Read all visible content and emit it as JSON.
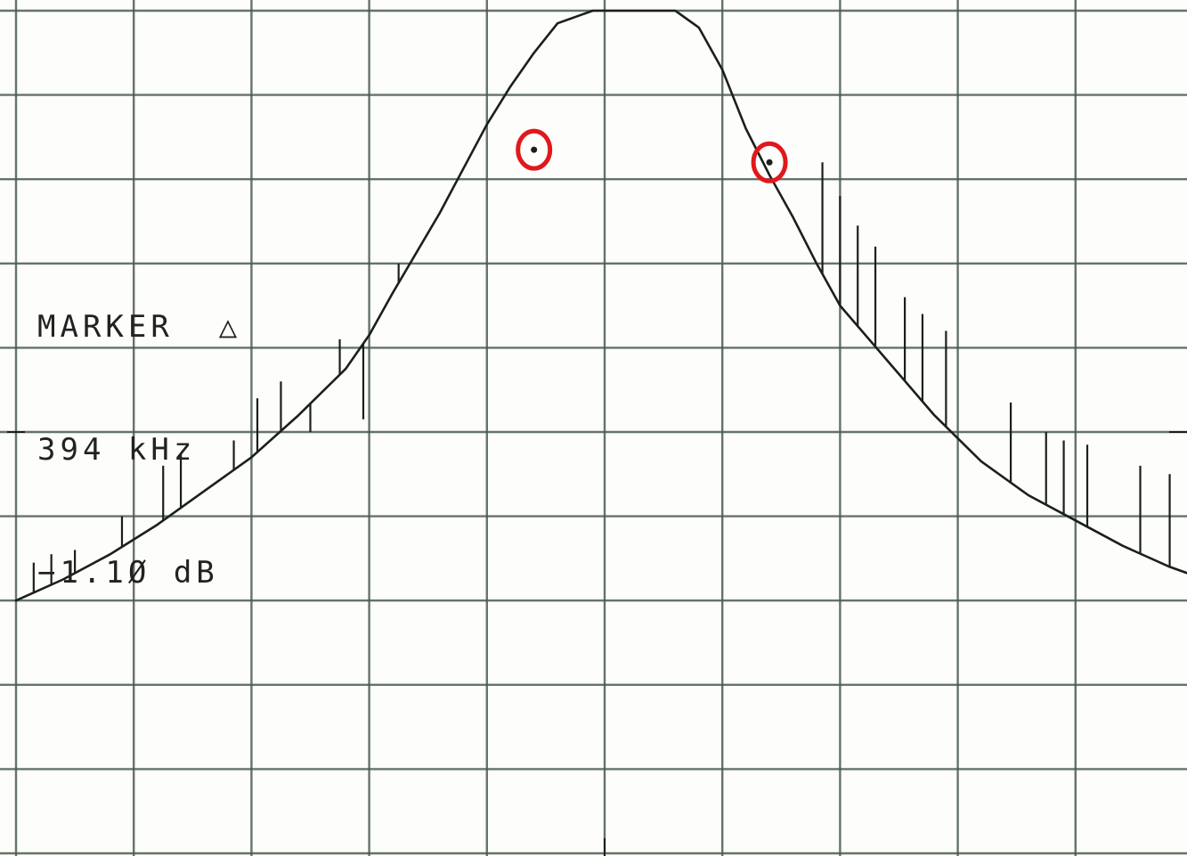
{
  "marker": {
    "label": "MARKER",
    "delta_symbol": "△",
    "frequency": "394 kHz",
    "level": "−1.1Ø dB"
  },
  "colors": {
    "grid": "#4b5b4f",
    "trace": "#1a201c",
    "marker_circle": "#e0181c",
    "paper": "#fdfdfb"
  },
  "chart_data": {
    "type": "line",
    "title": "",
    "xlabel": "",
    "ylabel": "",
    "x_divisions": 10,
    "y_divisions": 10,
    "grid": true,
    "xlim": [
      0,
      10
    ],
    "ylim": [
      0,
      10
    ],
    "series": [
      {
        "x": [
          0.0,
          0.4,
          0.8,
          1.2,
          1.6,
          2.0,
          2.4,
          2.8,
          3.0,
          3.2,
          3.6,
          4.0,
          4.2,
          4.4,
          4.6,
          4.8,
          4.9,
          5.0,
          5.2,
          5.4,
          5.6,
          5.8,
          6.0,
          6.2,
          6.4,
          6.6,
          6.8,
          7.0,
          7.4,
          7.8,
          8.2,
          8.6,
          9.0,
          9.4,
          9.8,
          10.0
        ],
        "y": [
          3.0,
          3.25,
          3.55,
          3.9,
          4.3,
          4.7,
          5.2,
          5.75,
          6.15,
          6.65,
          7.6,
          8.65,
          9.1,
          9.5,
          9.85,
          9.95,
          10.0,
          10.0,
          10.0,
          10.0,
          10.0,
          9.8,
          9.3,
          8.6,
          8.05,
          7.55,
          7.0,
          6.5,
          5.85,
          5.2,
          4.65,
          4.25,
          3.95,
          3.65,
          3.4,
          3.3
        ]
      }
    ],
    "spurs": [
      {
        "x": 0.15,
        "y": 3.45
      },
      {
        "x": 0.3,
        "y": 3.55
      },
      {
        "x": 0.5,
        "y": 3.6
      },
      {
        "x": 0.9,
        "y": 4.0
      },
      {
        "x": 1.25,
        "y": 4.6
      },
      {
        "x": 1.4,
        "y": 4.75
      },
      {
        "x": 1.85,
        "y": 4.9
      },
      {
        "x": 2.05,
        "y": 5.4
      },
      {
        "x": 2.25,
        "y": 5.6
      },
      {
        "x": 2.5,
        "y": 5.0
      },
      {
        "x": 2.75,
        "y": 6.1
      },
      {
        "x": 2.95,
        "y": 5.15
      },
      {
        "x": 3.25,
        "y": 7.0
      },
      {
        "x": 6.85,
        "y": 8.2
      },
      {
        "x": 7.0,
        "y": 7.8
      },
      {
        "x": 7.15,
        "y": 7.45
      },
      {
        "x": 7.3,
        "y": 7.2
      },
      {
        "x": 7.55,
        "y": 6.6
      },
      {
        "x": 7.7,
        "y": 6.4
      },
      {
        "x": 7.9,
        "y": 6.2
      },
      {
        "x": 8.45,
        "y": 5.35
      },
      {
        "x": 8.75,
        "y": 5.0
      },
      {
        "x": 8.9,
        "y": 4.9
      },
      {
        "x": 9.1,
        "y": 4.85
      },
      {
        "x": 9.55,
        "y": 4.6
      },
      {
        "x": 9.8,
        "y": 4.5
      }
    ],
    "markers": [
      {
        "x": 4.4,
        "y": 8.35
      },
      {
        "x": 6.4,
        "y": 8.2
      }
    ]
  }
}
